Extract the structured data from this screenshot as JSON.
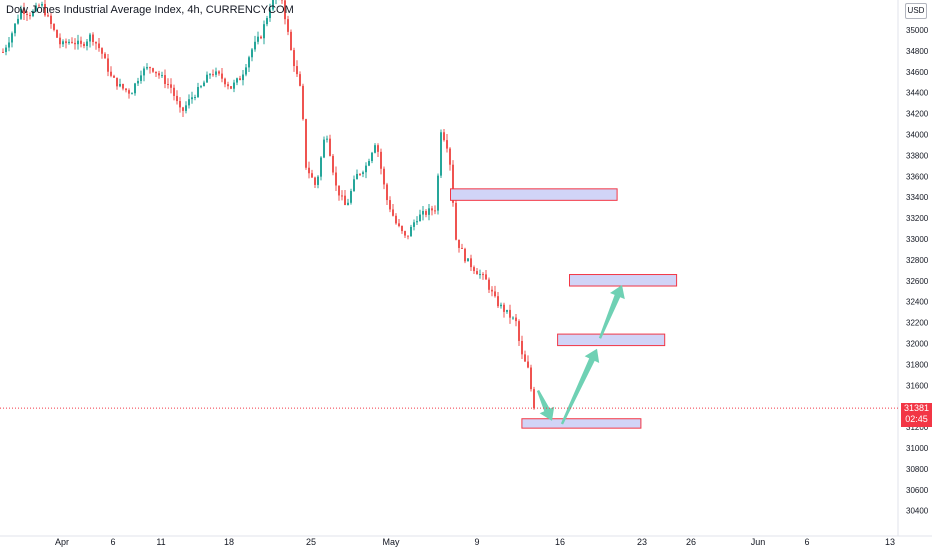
{
  "chart_title": "Dow Jones Industrial Average Index, 4h, CURRENCYCOM",
  "currency_label": "USD",
  "colors": {
    "up": "#26a69a",
    "down": "#ef5350",
    "zone_fill": "#d1d4f7",
    "zone_border": "#f23645",
    "arrow": "#6fd1b4",
    "price_line": "#f23645",
    "axis_text": "#131722"
  },
  "price_badge": {
    "price": "31381",
    "countdown": "02:45"
  },
  "chart_data": {
    "type": "candlestick",
    "title": "Dow Jones Industrial Average Index, 4h, CURRENCYCOM",
    "ylim": [
      30300,
      35300
    ],
    "y_ticks": [
      35000,
      34800,
      34600,
      34400,
      34200,
      34000,
      33800,
      33600,
      33400,
      33200,
      33000,
      32800,
      32600,
      32400,
      32200,
      32000,
      31800,
      31600,
      31200,
      31000,
      30800,
      30600,
      30400
    ],
    "x_ticks": [
      "Apr",
      "6",
      "11",
      "18",
      "25",
      "May",
      "9",
      "16",
      "23",
      "26",
      "Jun",
      "6",
      "13"
    ],
    "last_price": 31381,
    "price_path": [
      [
        0,
        34750
      ],
      [
        10,
        34950
      ],
      [
        20,
        35200
      ],
      [
        30,
        35150
      ],
      [
        40,
        35250
      ],
      [
        50,
        35050
      ],
      [
        60,
        34850
      ],
      [
        70,
        34900
      ],
      [
        80,
        34850
      ],
      [
        90,
        34950
      ],
      [
        100,
        34800
      ],
      [
        110,
        34550
      ],
      [
        120,
        34450
      ],
      [
        130,
        34400
      ],
      [
        140,
        34600
      ],
      [
        150,
        34650
      ],
      [
        160,
        34550
      ],
      [
        170,
        34450
      ],
      [
        180,
        34200
      ],
      [
        190,
        34350
      ],
      [
        200,
        34450
      ],
      [
        210,
        34600
      ],
      [
        220,
        34550
      ],
      [
        230,
        34450
      ],
      [
        240,
        34550
      ],
      [
        250,
        34800
      ],
      [
        260,
        34950
      ],
      [
        270,
        35250
      ],
      [
        280,
        35350
      ],
      [
        290,
        34800
      ],
      [
        300,
        34400
      ],
      [
        305,
        33700
      ],
      [
        315,
        33500
      ],
      [
        325,
        34050
      ],
      [
        335,
        33500
      ],
      [
        345,
        33300
      ],
      [
        355,
        33600
      ],
      [
        365,
        33700
      ],
      [
        375,
        33950
      ],
      [
        385,
        33400
      ],
      [
        395,
        33150
      ],
      [
        405,
        33000
      ],
      [
        415,
        33200
      ],
      [
        425,
        33250
      ],
      [
        435,
        33300
      ],
      [
        440,
        34050
      ],
      [
        448,
        33850
      ],
      [
        455,
        33000
      ],
      [
        465,
        32800
      ],
      [
        475,
        32700
      ],
      [
        485,
        32600
      ],
      [
        495,
        32400
      ],
      [
        505,
        32300
      ],
      [
        515,
        32200
      ],
      [
        520,
        31900
      ],
      [
        527,
        31750
      ],
      [
        533,
        31381
      ]
    ],
    "zones": [
      {
        "from": 33480,
        "to": 33370,
        "start": "May 6",
        "end": "May 20"
      },
      {
        "from": 32660,
        "to": 32550,
        "start": "May 16",
        "end": "May 25"
      },
      {
        "from": 32090,
        "to": 31980,
        "start": "May 15",
        "end": "May 24"
      },
      {
        "from": 31280,
        "to": 31190,
        "start": "May 12",
        "end": "May 22"
      }
    ],
    "arrows": [
      {
        "from": [
          538,
          31550
        ],
        "to": [
          552,
          31260
        ]
      },
      {
        "from": [
          562,
          31230
        ],
        "to": [
          597,
          31950
        ]
      },
      {
        "from": [
          600,
          32050
        ],
        "to": [
          622,
          32560
        ]
      }
    ]
  }
}
